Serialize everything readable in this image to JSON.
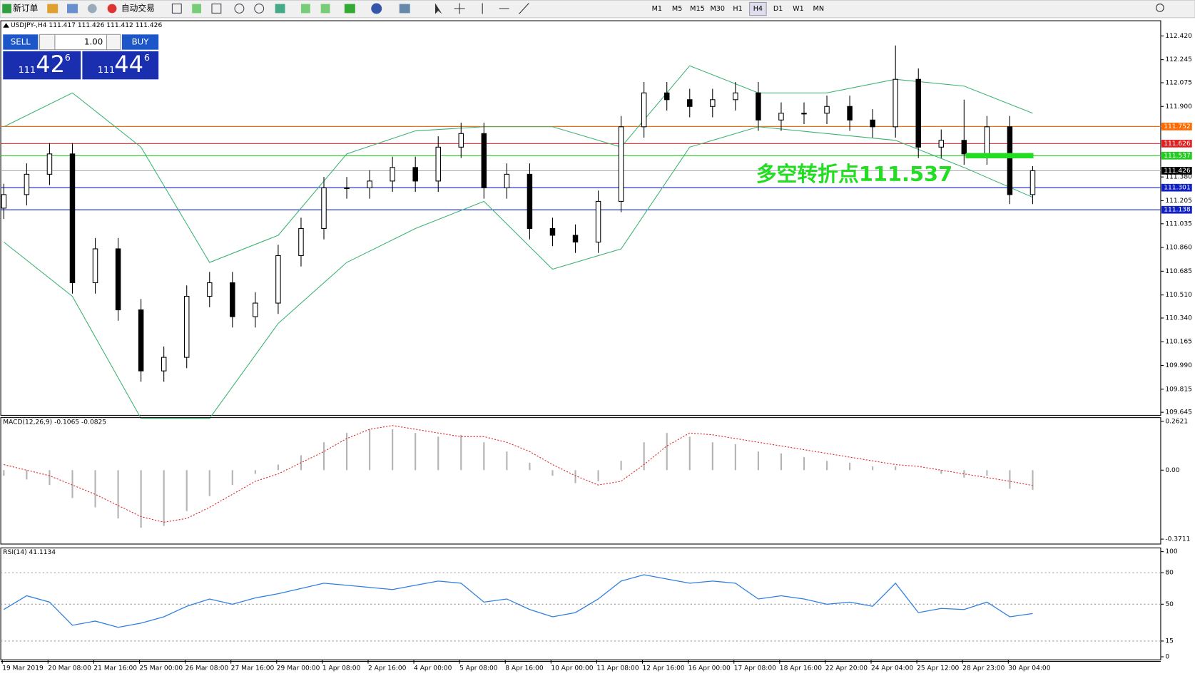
{
  "toolbar": {
    "new_order": "新订单",
    "auto_trade": "自动交易",
    "timeframes": [
      "M1",
      "M5",
      "M15",
      "M30",
      "H1",
      "H4",
      "D1",
      "W1",
      "MN"
    ]
  },
  "trade_panel": {
    "sell": "SELL",
    "lots": "1.00",
    "buy": "BUY",
    "sell_price": {
      "big": "111",
      "main": "42",
      "small": "6"
    },
    "buy_price": {
      "big": "111",
      "main": "44",
      "small": "6"
    }
  },
  "time_axis": {
    "labels": [
      "19 Mar 2019",
      "20 Mar 08:00",
      "21 Mar 16:00",
      "25 Mar 00:00",
      "26 Mar 08:00",
      "27 Mar 16:00",
      "29 Mar 00:00",
      "1 Apr 08:00",
      "2 Apr 16:00",
      "4 Apr 00:00",
      "5 Apr 08:00",
      "8 Apr 16:00",
      "10 Apr 00:00",
      "11 Apr 08:00",
      "12 Apr 16:00",
      "16 Apr 00:00",
      "17 Apr 08:00",
      "18 Apr 16:00",
      "22 Apr 20:00",
      "24 Apr 04:00",
      "25 Apr 12:00",
      "28 Apr 23:00",
      "30 Apr 04:00"
    ]
  },
  "chart_data": [
    {
      "type": "candlestick",
      "title": "USDJPY-,H4  111.417 111.426 111.412 111.426",
      "annotation": "多空转折点111.537",
      "annotation_color": "#22dd22",
      "open": [
        111.15,
        111.25,
        111.4,
        111.55,
        110.6,
        110.85,
        110.4,
        109.95,
        110.05,
        110.5,
        110.6,
        110.35,
        110.45,
        110.8,
        111.0,
        111.3,
        111.3,
        111.35,
        111.45,
        111.35,
        111.6,
        111.7,
        111.3,
        111.4,
        111.0,
        110.95,
        110.9,
        111.2,
        111.75,
        112.0,
        111.95,
        111.9,
        111.95,
        112.0,
        111.8,
        111.85,
        111.85,
        111.9,
        111.8,
        111.75,
        112.1,
        111.6,
        111.65,
        111.55,
        111.75,
        111.25
      ],
      "high": [
        111.33,
        111.48,
        111.63,
        111.63,
        110.93,
        110.93,
        110.48,
        110.13,
        110.58,
        110.68,
        110.68,
        110.53,
        110.88,
        111.08,
        111.38,
        111.38,
        111.43,
        111.53,
        111.53,
        111.68,
        111.78,
        111.78,
        111.48,
        111.48,
        111.08,
        111.03,
        111.28,
        111.83,
        112.08,
        112.08,
        112.03,
        112.03,
        112.08,
        112.08,
        111.93,
        111.93,
        111.98,
        111.98,
        111.88,
        112.35,
        112.18,
        111.73,
        111.95,
        111.83,
        111.83,
        111.46
      ],
      "low": [
        111.07,
        111.17,
        111.32,
        110.52,
        110.52,
        110.32,
        109.87,
        109.87,
        109.97,
        110.42,
        110.27,
        110.27,
        110.37,
        110.72,
        110.92,
        111.22,
        111.22,
        111.27,
        111.27,
        111.27,
        111.52,
        111.22,
        111.22,
        110.92,
        110.87,
        110.82,
        110.82,
        111.12,
        111.67,
        111.87,
        111.82,
        111.82,
        111.87,
        111.72,
        111.72,
        111.77,
        111.77,
        111.72,
        111.67,
        111.67,
        111.52,
        111.52,
        111.47,
        111.47,
        111.18,
        111.18
      ],
      "close": [
        111.25,
        111.4,
        111.55,
        110.6,
        110.85,
        110.4,
        109.95,
        110.05,
        110.5,
        110.6,
        110.35,
        110.45,
        110.8,
        111.0,
        111.3,
        111.3,
        111.35,
        111.45,
        111.35,
        111.6,
        111.7,
        111.3,
        111.4,
        111.0,
        110.95,
        110.9,
        111.2,
        111.75,
        112.0,
        111.95,
        111.9,
        111.95,
        112.0,
        111.8,
        111.85,
        111.85,
        111.9,
        111.8,
        111.75,
        112.1,
        111.6,
        111.65,
        111.55,
        111.75,
        111.25,
        111.426
      ],
      "bands": {
        "color": "#3cb371",
        "x": [
          0,
          3,
          6,
          9,
          12,
          15,
          18,
          21,
          24,
          27,
          30,
          33,
          36,
          39,
          42,
          45
        ],
        "upper": [
          111.75,
          112.0,
          111.6,
          110.75,
          110.95,
          111.55,
          111.72,
          111.75,
          111.75,
          111.6,
          112.2,
          112.0,
          112.0,
          112.1,
          112.05,
          111.85
        ],
        "lower": [
          110.9,
          110.5,
          109.6,
          109.6,
          110.3,
          110.75,
          111.0,
          111.2,
          110.7,
          110.85,
          111.6,
          111.75,
          111.7,
          111.65,
          111.45,
          111.23
        ]
      },
      "levels": [
        {
          "value": 111.752,
          "color": "#ff6a00"
        },
        {
          "value": 111.626,
          "color": "#e02020"
        },
        {
          "value": 111.537,
          "color": "#22cc22"
        },
        {
          "value": 111.426,
          "color": "#b0b0b0"
        },
        {
          "value": 111.301,
          "color": "#1020c0"
        },
        {
          "value": 111.138,
          "color": "#1020c0"
        }
      ],
      "ylim": [
        109.6225,
        112.532
      ],
      "yticks": [
        {
          "value": 112.42,
          "label": "112.420"
        },
        112.245,
        112.075,
        {
          "value": 111.9,
          "label": "111.900"
        },
        {
          "value": 111.38,
          "label": "111.380"
        },
        111.205,
        111.035,
        {
          "value": 110.86,
          "label": "110.860"
        },
        110.685,
        {
          "value": 110.51,
          "label": "110.510"
        },
        {
          "value": 110.34,
          "label": "110.340"
        },
        110.165,
        {
          "value": 109.99,
          "label": "109.990"
        },
        109.815,
        109.645
      ]
    },
    {
      "type": "macd",
      "title": "MACD(12,26,9) -0.1065 -0.0825",
      "histogram_color": "#b4b4b4",
      "signal_color": "#e02020",
      "histogram": [
        -0.03,
        -0.05,
        -0.08,
        -0.15,
        -0.2,
        -0.26,
        -0.31,
        -0.3,
        -0.22,
        -0.14,
        -0.08,
        -0.02,
        0.03,
        0.08,
        0.15,
        0.2,
        0.22,
        0.22,
        0.2,
        0.18,
        0.19,
        0.15,
        0.1,
        0.04,
        -0.03,
        -0.07,
        -0.06,
        0.05,
        0.15,
        0.2,
        0.18,
        0.15,
        0.14,
        0.1,
        0.09,
        0.07,
        0.05,
        0.04,
        0.02,
        0.02,
        0.0,
        -0.02,
        -0.04,
        -0.03,
        -0.1,
        -0.1065
      ],
      "signal": [
        0.03,
        0,
        -0.03,
        -0.08,
        -0.13,
        -0.19,
        -0.25,
        -0.28,
        -0.26,
        -0.2,
        -0.13,
        -0.06,
        -0.02,
        0.04,
        0.1,
        0.17,
        0.22,
        0.24,
        0.22,
        0.2,
        0.18,
        0.18,
        0.15,
        0.1,
        0.03,
        -0.03,
        -0.08,
        -0.06,
        0.03,
        0.13,
        0.2,
        0.19,
        0.17,
        0.15,
        0.13,
        0.11,
        0.09,
        0.07,
        0.05,
        0.03,
        0.02,
        0.0,
        -0.02,
        -0.04,
        -0.06,
        -0.0825
      ],
      "ylim": [
        -0.3975,
        0.2826
      ],
      "yticks": [
        0.2621,
        {
          "value": 0,
          "label": "0.00"
        },
        -0.3711
      ]
    },
    {
      "type": "line",
      "title": "RSI(14) 41.1134",
      "color": "#2f7fe0",
      "values": [
        45,
        58,
        52,
        30,
        34,
        28,
        32,
        38,
        48,
        55,
        50,
        56,
        60,
        65,
        70,
        68,
        66,
        64,
        68,
        72,
        70,
        52,
        55,
        45,
        38,
        42,
        55,
        72,
        78,
        74,
        70,
        72,
        70,
        55,
        58,
        55,
        50,
        52,
        48,
        70,
        42,
        46,
        45,
        52,
        38,
        41.1134
      ],
      "ylim": [
        -2.9,
        103.6
      ],
      "yticks": [
        100,
        80,
        50,
        15,
        0
      ],
      "levels": [
        80,
        50,
        15
      ]
    }
  ]
}
